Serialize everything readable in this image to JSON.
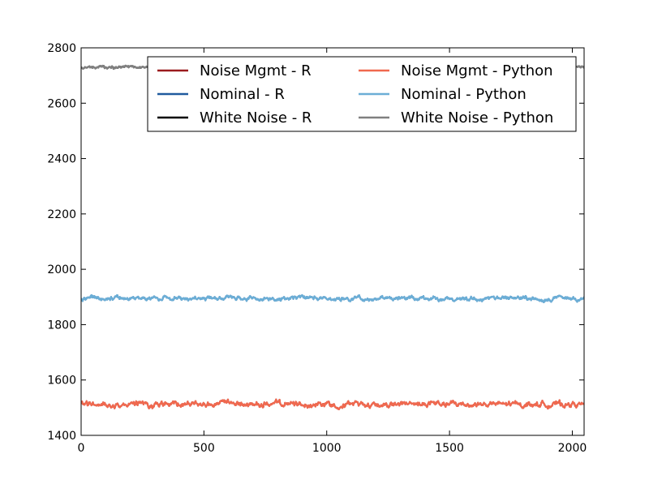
{
  "chart_data": {
    "type": "line",
    "title": "",
    "xlabel": "",
    "ylabel": "",
    "xlim": [
      0,
      2048
    ],
    "ylim": [
      1400,
      2800
    ],
    "xticks": [
      0,
      500,
      1000,
      1500,
      2000
    ],
    "yticks": [
      1400,
      1600,
      1800,
      2000,
      2200,
      2400,
      2600,
      2800
    ],
    "grid": false,
    "legend": {
      "placement": "top-center",
      "columns": 2
    },
    "series": [
      {
        "name": "Noise Mgmt - R",
        "color": "#9b1b1f",
        "mean": 1512,
        "amplitude": 12,
        "x_range": [
          0,
          2048
        ]
      },
      {
        "name": "Nominal - R",
        "color": "#1f5a9e",
        "mean": 1895,
        "amplitude": 9,
        "x_range": [
          0,
          2048
        ]
      },
      {
        "name": "White Noise - R",
        "color": "#000000",
        "mean": 2730,
        "amplitude": 6,
        "x_range": [
          0,
          2048
        ]
      },
      {
        "name": "Noise Mgmt - Python",
        "color": "#f0694f",
        "mean": 1512,
        "amplitude": 12,
        "x_range": [
          0,
          2048
        ]
      },
      {
        "name": "Nominal - Python",
        "color": "#6baed6",
        "mean": 1895,
        "amplitude": 9,
        "x_range": [
          0,
          2048
        ]
      },
      {
        "name": "White Noise - Python",
        "color": "#808080",
        "mean": 2730,
        "amplitude": 6,
        "x_range": [
          0,
          2048
        ]
      }
    ]
  }
}
